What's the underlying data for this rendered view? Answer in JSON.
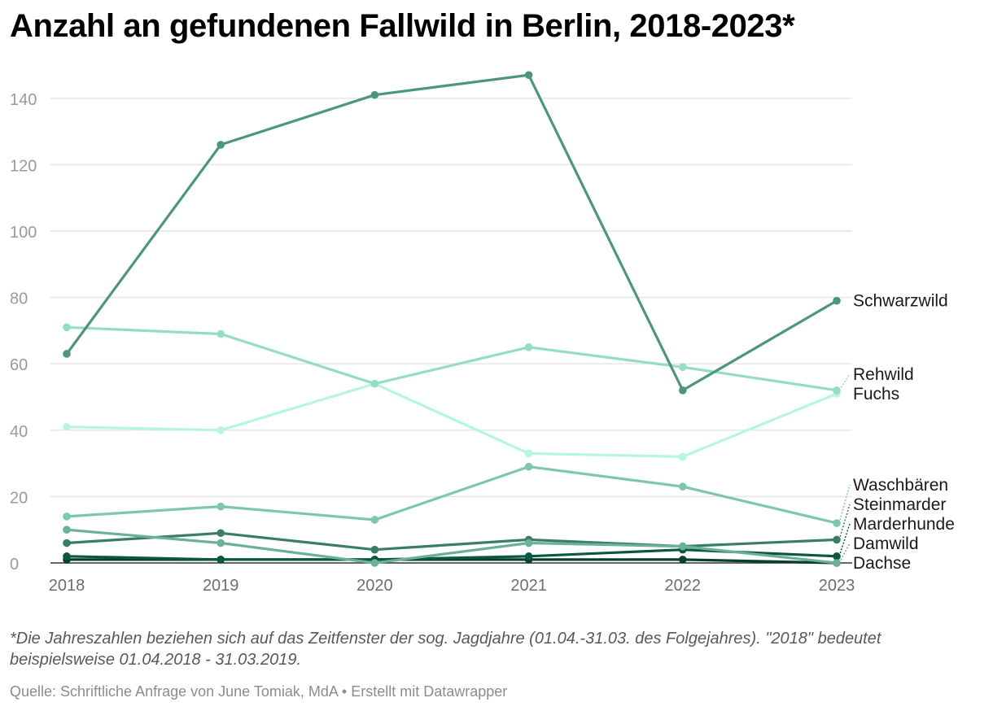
{
  "title": "Anzahl an gefundenen Fallwild in Berlin, 2018-2023*",
  "footnote": "*Die Jahreszahlen beziehen sich auf das Zeitfenster der sog. Jagdjahre (01.04.-31.03. des Folgejahres). \"2018\" bedeutet beispielsweise 01.04.2018 - 31.03.2019.",
  "source": {
    "label": "Quelle: Schriftliche Anfrage von June Tomiak, MdA",
    "separator": " • ",
    "credit": "Erstellt mit Datawrapper"
  },
  "chart_data": {
    "type": "line",
    "title": "Anzahl an gefundenen Fallwild in Berlin, 2018-2023*",
    "xlabel": "",
    "ylabel": "",
    "x": [
      "2018",
      "2019",
      "2020",
      "2021",
      "2022",
      "2023"
    ],
    "ylim": [
      0,
      150
    ],
    "yticks": [
      0,
      20,
      40,
      60,
      80,
      100,
      120,
      140
    ],
    "grid": true,
    "legend": "direct labels at right end of lines",
    "series": [
      {
        "name": "Schwarzwild",
        "values": [
          63,
          126,
          141,
          147,
          52,
          79
        ],
        "color": "#4e9580"
      },
      {
        "name": "Rehwild",
        "values": [
          71,
          69,
          54,
          65,
          59,
          52
        ],
        "color": "#96dcc4"
      },
      {
        "name": "Fuchs",
        "values": [
          41,
          40,
          54,
          33,
          32,
          51
        ],
        "color": "#b5f5e2"
      },
      {
        "name": "Waschbären",
        "values": [
          14,
          17,
          13,
          29,
          23,
          12
        ],
        "color": "#7ec7ad"
      },
      {
        "name": "Damwild",
        "values": [
          10,
          6,
          0,
          6,
          5,
          0
        ],
        "color": "#6ab198"
      },
      {
        "name": "Steinmarder",
        "values": [
          6,
          9,
          4,
          7,
          5,
          7
        ],
        "color": "#3a7d67"
      },
      {
        "name": "Marderhunde",
        "values": [
          2,
          1,
          1,
          2,
          4,
          2
        ],
        "color": "#0b5744"
      },
      {
        "name": "Dachse",
        "values": [
          1,
          1,
          1,
          1,
          1,
          0
        ],
        "color": "#06402f"
      }
    ]
  }
}
